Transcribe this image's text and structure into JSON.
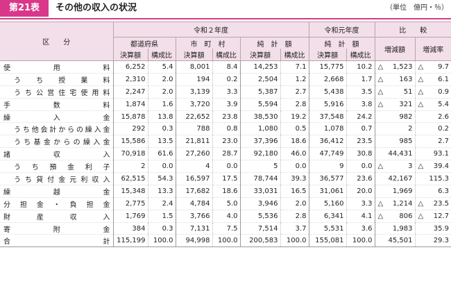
{
  "header": {
    "table_number": "第21表",
    "title": "その他の収入の状況",
    "unit": "（単位　億円・％）"
  },
  "columns": {
    "category": "区　　分",
    "group_r2": "令和２年度",
    "group_r1": "令和元年度",
    "group_cmp": "比　　較",
    "pref": "都道府県",
    "muni": "市　町　村",
    "total": "純　計　額",
    "r1_total": "純　計　額",
    "amount": "決算額",
    "ratio": "構成比",
    "change_amount": "増減額",
    "change_rate": "増減率"
  },
  "rows": [
    {
      "label": "使用料",
      "sub": false,
      "pref_amt": "6,252",
      "pref_ratio": "5.4",
      "muni_amt": "8,001",
      "muni_ratio": "8.4",
      "total_amt": "14,253",
      "total_ratio": "7.1",
      "r1_amt": "15,775",
      "r1_ratio": "10.2",
      "diff_mark": "△",
      "diff": "1,523",
      "rate_mark": "△",
      "rate": "9.7"
    },
    {
      "label": "うち授業料",
      "sub": true,
      "pref_amt": "2,310",
      "pref_ratio": "2.0",
      "muni_amt": "194",
      "muni_ratio": "0.2",
      "total_amt": "2,504",
      "total_ratio": "1.2",
      "r1_amt": "2,668",
      "r1_ratio": "1.7",
      "diff_mark": "△",
      "diff": "163",
      "rate_mark": "△",
      "rate": "6.1"
    },
    {
      "label": "うち公営住宅使用料",
      "sub": true,
      "pref_amt": "2,247",
      "pref_ratio": "2.0",
      "muni_amt": "3,139",
      "muni_ratio": "3.3",
      "total_amt": "5,387",
      "total_ratio": "2.7",
      "r1_amt": "5,438",
      "r1_ratio": "3.5",
      "diff_mark": "△",
      "diff": "51",
      "rate_mark": "△",
      "rate": "0.9"
    },
    {
      "label": "手数料",
      "sub": false,
      "pref_amt": "1,874",
      "pref_ratio": "1.6",
      "muni_amt": "3,720",
      "muni_ratio": "3.9",
      "total_amt": "5,594",
      "total_ratio": "2.8",
      "r1_amt": "5,916",
      "r1_ratio": "3.8",
      "diff_mark": "△",
      "diff": "321",
      "rate_mark": "△",
      "rate": "5.4"
    },
    {
      "label": "繰入金",
      "sub": false,
      "pref_amt": "15,878",
      "pref_ratio": "13.8",
      "muni_amt": "22,652",
      "muni_ratio": "23.8",
      "total_amt": "38,530",
      "total_ratio": "19.2",
      "r1_amt": "37,548",
      "r1_ratio": "24.2",
      "diff_mark": "",
      "diff": "982",
      "rate_mark": "",
      "rate": "2.6"
    },
    {
      "label": "うち他会計からの繰入金",
      "sub": true,
      "pref_amt": "292",
      "pref_ratio": "0.3",
      "muni_amt": "788",
      "muni_ratio": "0.8",
      "total_amt": "1,080",
      "total_ratio": "0.5",
      "r1_amt": "1,078",
      "r1_ratio": "0.7",
      "diff_mark": "",
      "diff": "2",
      "rate_mark": "",
      "rate": "0.2"
    },
    {
      "label": "うち基金からの繰入金",
      "sub": true,
      "pref_amt": "15,586",
      "pref_ratio": "13.5",
      "muni_amt": "21,811",
      "muni_ratio": "23.0",
      "total_amt": "37,396",
      "total_ratio": "18.6",
      "r1_amt": "36,412",
      "r1_ratio": "23.5",
      "diff_mark": "",
      "diff": "985",
      "rate_mark": "",
      "rate": "2.7"
    },
    {
      "label": "諸収入",
      "sub": false,
      "pref_amt": "70,918",
      "pref_ratio": "61.6",
      "muni_amt": "27,260",
      "muni_ratio": "28.7",
      "total_amt": "92,180",
      "total_ratio": "46.0",
      "r1_amt": "47,749",
      "r1_ratio": "30.8",
      "diff_mark": "",
      "diff": "44,431",
      "rate_mark": "",
      "rate": "93.1"
    },
    {
      "label": "うち預金利子",
      "sub": true,
      "pref_amt": "2",
      "pref_ratio": "0.0",
      "muni_amt": "4",
      "muni_ratio": "0.0",
      "total_amt": "5",
      "total_ratio": "0.0",
      "r1_amt": "9",
      "r1_ratio": "0.0",
      "diff_mark": "△",
      "diff": "3",
      "rate_mark": "△",
      "rate": "39.4"
    },
    {
      "label": "うち貸付金元利収入",
      "sub": true,
      "pref_amt": "62,515",
      "pref_ratio": "54.3",
      "muni_amt": "16,597",
      "muni_ratio": "17.5",
      "total_amt": "78,744",
      "total_ratio": "39.3",
      "r1_amt": "36,577",
      "r1_ratio": "23.6",
      "diff_mark": "",
      "diff": "42,167",
      "rate_mark": "",
      "rate": "115.3"
    },
    {
      "label": "繰越金",
      "sub": false,
      "pref_amt": "15,348",
      "pref_ratio": "13.3",
      "muni_amt": "17,682",
      "muni_ratio": "18.6",
      "total_amt": "33,031",
      "total_ratio": "16.5",
      "r1_amt": "31,061",
      "r1_ratio": "20.0",
      "diff_mark": "",
      "diff": "1,969",
      "rate_mark": "",
      "rate": "6.3"
    },
    {
      "label": "分担金・負担金",
      "sub": false,
      "pref_amt": "2,775",
      "pref_ratio": "2.4",
      "muni_amt": "4,784",
      "muni_ratio": "5.0",
      "total_amt": "3,946",
      "total_ratio": "2.0",
      "r1_amt": "5,160",
      "r1_ratio": "3.3",
      "diff_mark": "△",
      "diff": "1,214",
      "rate_mark": "△",
      "rate": "23.5"
    },
    {
      "label": "財産収入",
      "sub": false,
      "pref_amt": "1,769",
      "pref_ratio": "1.5",
      "muni_amt": "3,766",
      "muni_ratio": "4.0",
      "total_amt": "5,536",
      "total_ratio": "2.8",
      "r1_amt": "6,341",
      "r1_ratio": "4.1",
      "diff_mark": "△",
      "diff": "806",
      "rate_mark": "△",
      "rate": "12.7"
    },
    {
      "label": "寄附金",
      "sub": false,
      "pref_amt": "384",
      "pref_ratio": "0.3",
      "muni_amt": "7,131",
      "muni_ratio": "7.5",
      "total_amt": "7,514",
      "total_ratio": "3.7",
      "r1_amt": "5,531",
      "r1_ratio": "3.6",
      "diff_mark": "",
      "diff": "1,983",
      "rate_mark": "",
      "rate": "35.9"
    },
    {
      "label": "合計",
      "sub": false,
      "pref_amt": "115,199",
      "pref_ratio": "100.0",
      "muni_amt": "94,998",
      "muni_ratio": "100.0",
      "total_amt": "200,583",
      "total_ratio": "100.0",
      "r1_amt": "155,081",
      "r1_ratio": "100.0",
      "diff_mark": "",
      "diff": "45,501",
      "rate_mark": "",
      "rate": "29.3"
    }
  ]
}
